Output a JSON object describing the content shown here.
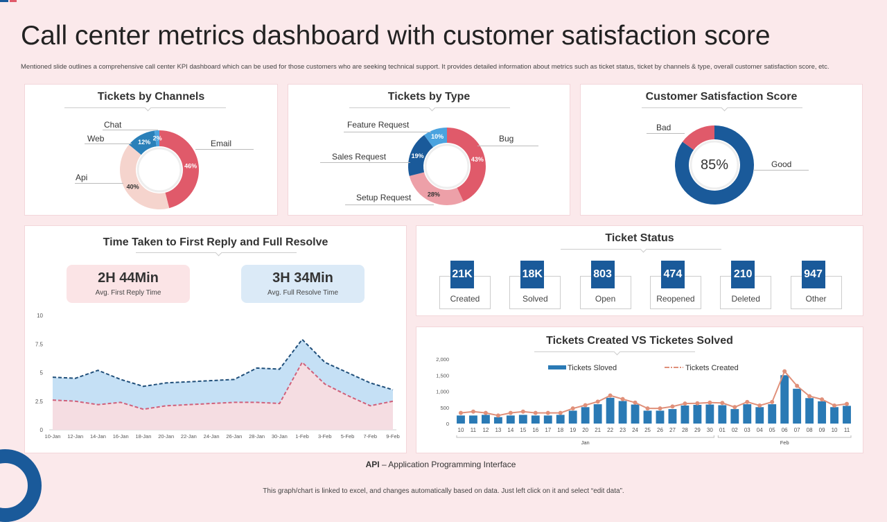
{
  "title": "Call center metrics dashboard with customer satisfaction score",
  "description": "Mentioned slide outlines a comprehensive call center KPI dashboard which can be used for those customers who are seeking technical support. It provides detailed information about metrics such as ticket status, ticket by channels & type, overall customer satisfaction score, etc.",
  "colors": {
    "red": "#e05a6a",
    "blue": "#1a5a9a",
    "lightblue": "#4aa3df",
    "pink": "#f5d2cc"
  },
  "channels": {
    "title": "Tickets by Channels",
    "slices": [
      {
        "label": "Email",
        "value": 46,
        "color": "#e05a6a",
        "pct": "46%"
      },
      {
        "label": "Api",
        "value": 40,
        "color": "#f5d4cd",
        "pct": "40%"
      },
      {
        "label": "Web",
        "value": 12,
        "color": "#2a80b9",
        "pct": "12%"
      },
      {
        "label": "Chat",
        "value": 2,
        "color": "#4aa3df",
        "pct": "2%"
      }
    ]
  },
  "types": {
    "title": "Tickets by Type",
    "slices": [
      {
        "label": "Bug",
        "value": 43,
        "color": "#e05a6a",
        "pct": "43%"
      },
      {
        "label": "Setup Request",
        "value": 28,
        "color": "#eda0a8",
        "pct": "28%"
      },
      {
        "label": "Sales Request",
        "value": 19,
        "color": "#1a5a9a",
        "pct": "19%"
      },
      {
        "label": "Feature Request",
        "value": 10,
        "color": "#4aa3df",
        "pct": "10%"
      }
    ]
  },
  "csat": {
    "title": "Customer Satisfaction Score",
    "center": "85%",
    "slices": [
      {
        "label": "Good",
        "value": 85,
        "color": "#1a5a9a"
      },
      {
        "label": "Bad",
        "value": 15,
        "color": "#e05a6a"
      }
    ]
  },
  "time": {
    "title": "Time Taken to First Reply and Full Resolve",
    "first_value": "2H  44Min",
    "first_caption": "Avg. First Reply Time",
    "resolve_value": "3H  34Min",
    "resolve_caption": "Avg. Full Resolve Time"
  },
  "status": {
    "title": "Ticket  Status",
    "items": [
      {
        "value": "21K",
        "label": "Created"
      },
      {
        "value": "18K",
        "label": "Solved"
      },
      {
        "value": "803",
        "label": "Open"
      },
      {
        "value": "474",
        "label": "Reopened"
      },
      {
        "value": "210",
        "label": "Deleted"
      },
      {
        "value": "947",
        "label": "Other"
      }
    ]
  },
  "created_vs_solved_title": "Tickets Created VS Ticketes Solved",
  "chart_data": [
    {
      "type": "area",
      "x": [
        "10-Jan",
        "12-Jan",
        "14-Jan",
        "16-Jan",
        "18-Jan",
        "20-Jan",
        "22-Jan",
        "24-Jan",
        "26-Jan",
        "28-Jan",
        "30-Jan",
        "1-Feb",
        "3-Feb",
        "5-Feb",
        "7-Feb",
        "9-Feb"
      ],
      "yticks": [
        "0",
        "2.5",
        "5",
        "7.5",
        "10"
      ],
      "ylim": [
        0,
        10
      ],
      "series": [
        {
          "values": [
            4.6,
            4.5,
            5.2,
            4.4,
            3.8,
            4.1,
            4.2,
            4.3,
            4.4,
            5.4,
            5.3,
            7.9,
            5.9,
            5.0,
            4.1,
            3.5
          ],
          "color": "#1f4e79",
          "fill": "#c5e0f5"
        },
        {
          "values": [
            2.6,
            2.5,
            2.2,
            2.4,
            1.8,
            2.1,
            2.2,
            2.3,
            2.4,
            2.4,
            2.3,
            5.9,
            4.0,
            3.0,
            2.1,
            2.5
          ],
          "color": "#d0607a",
          "fill": "#f5dde2"
        }
      ]
    },
    {
      "type": "bar+line",
      "categories": [
        "10",
        "11",
        "12",
        "13",
        "14",
        "15",
        "16",
        "17",
        "18",
        "19",
        "20",
        "21",
        "22",
        "23",
        "24",
        "25",
        "26",
        "27",
        "28",
        "29",
        "30",
        "01",
        "02",
        "03",
        "04",
        "05",
        "06",
        "07",
        "08",
        "09",
        "10",
        "11"
      ],
      "groups": [
        {
          "label": "Jan",
          "count": 21
        },
        {
          "label": "Feb",
          "count": 11
        }
      ],
      "yticks": [
        "0",
        "500",
        "1,000",
        "1,500",
        "2,000"
      ],
      "ylim": [
        0,
        2000
      ],
      "legend": "top",
      "series": [
        {
          "name": "Tickets Sloved",
          "type": "bar",
          "color": "#2a7ab5",
          "values": [
            250,
            250,
            270,
            200,
            250,
            270,
            250,
            250,
            270,
            400,
            510,
            600,
            800,
            700,
            590,
            400,
            400,
            450,
            560,
            580,
            590,
            570,
            450,
            600,
            510,
            600,
            1500,
            1080,
            790,
            690,
            510,
            550
          ]
        },
        {
          "name": "Tickets Created",
          "type": "line",
          "color": "#e0907a",
          "values": [
            330,
            370,
            330,
            250,
            330,
            370,
            330,
            330,
            330,
            470,
            570,
            680,
            870,
            760,
            650,
            470,
            470,
            530,
            620,
            630,
            650,
            640,
            510,
            670,
            560,
            670,
            1620,
            1170,
            850,
            750,
            560,
            610
          ]
        }
      ]
    }
  ],
  "footnote_abbr": "API",
  "footnote_text": " – Application Programming Interface",
  "bottom_note": "This graph/chart is linked to excel, and changes automatically based on data. Just left click on it and select “edit data”."
}
